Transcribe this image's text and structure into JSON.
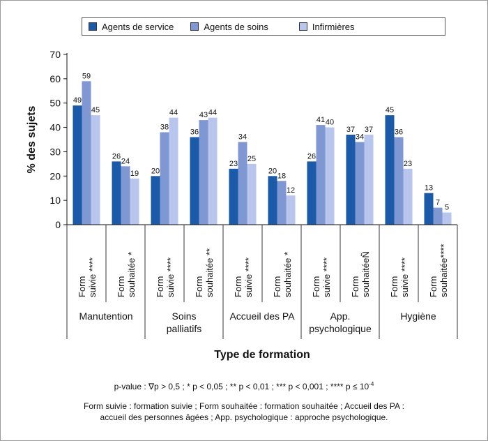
{
  "chart_data": {
    "type": "bar",
    "ylabel": "% des sujets",
    "xlabel": "Type de formation",
    "ylim": [
      0,
      70
    ],
    "yticks": [
      0,
      10,
      20,
      30,
      40,
      50,
      60,
      70
    ],
    "legend_position": "top",
    "groups": [
      {
        "label": "Manutention",
        "subs": [
          "Form suivie ****",
          "Form souhaitée *"
        ]
      },
      {
        "label": "Soins palliatifs",
        "subs": [
          "Form suivie ****",
          "Form souhaitée **"
        ]
      },
      {
        "label": "Accueil des PA",
        "subs": [
          "Form suivie ****",
          "Form souhaitée *"
        ]
      },
      {
        "label": "App. psychologique",
        "subs": [
          "Form suivie ****",
          "Form souhaitéeÑ"
        ]
      },
      {
        "label": "Hygiène",
        "subs": [
          "Form suivie ****",
          "Form souhaitée****"
        ]
      }
    ],
    "series": [
      {
        "name": "Agents de service",
        "color": "#1a5aa8",
        "values": [
          49,
          26,
          20,
          36,
          23,
          20,
          26,
          37,
          45,
          13
        ]
      },
      {
        "name": "Agents de soins",
        "color": "#7f97d3",
        "values": [
          59,
          24,
          38,
          43,
          34,
          18,
          41,
          34,
          36,
          7
        ]
      },
      {
        "name": "Infirmières",
        "color": "#b8c5ec",
        "values": [
          45,
          19,
          44,
          44,
          25,
          12,
          40,
          37,
          23,
          5
        ]
      }
    ]
  },
  "footnotes": {
    "pvalue": "p-value : ∇p > 0,5 ; * p < 0,05 ; ** p < 0,01 ; *** p < 0,001 ; **** p ≤ 10",
    "pvalue_exp": "-4",
    "abbrev_line1": "Form suivie : formation suivie ; Form souhaitée : formation souhaitée ; Accueil des PA :",
    "abbrev_line2": "accueil des personnes âgées ; App. psychologique : approche psychologique."
  }
}
